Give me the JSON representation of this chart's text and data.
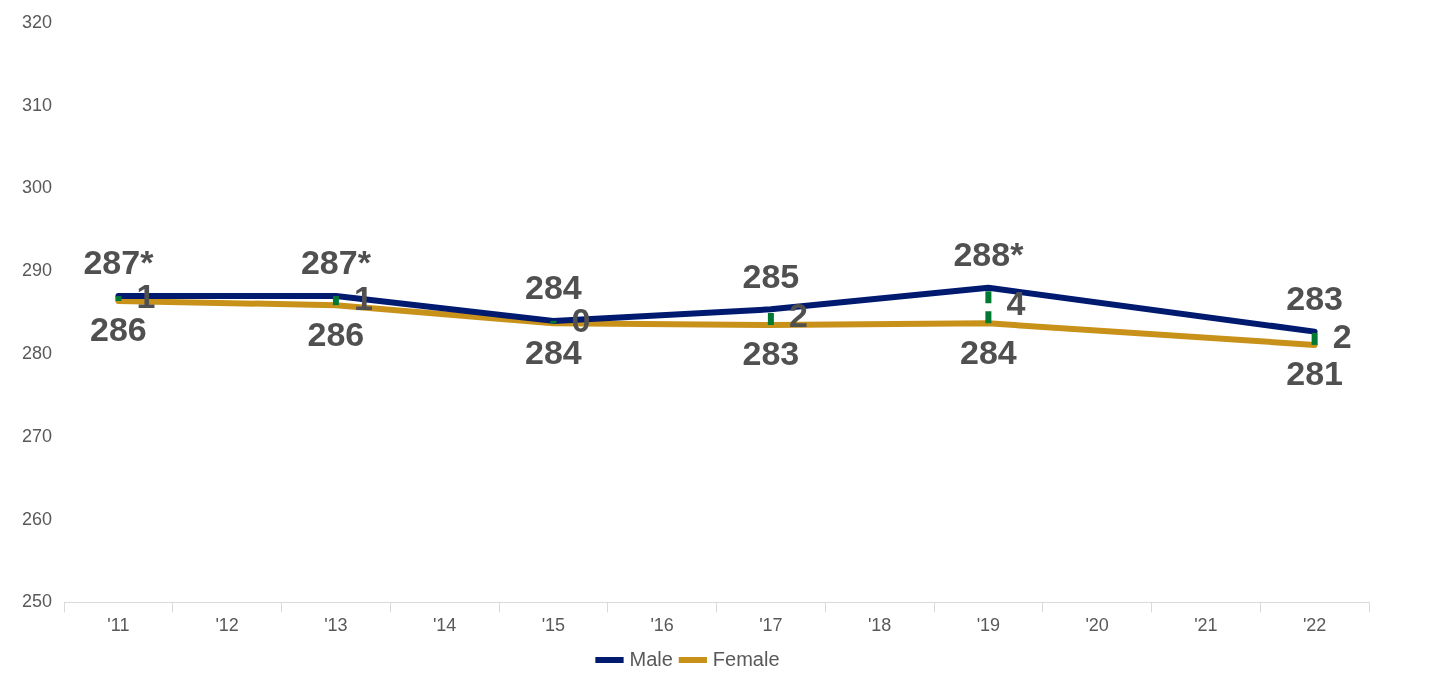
{
  "chart_data": {
    "type": "line",
    "categories": [
      "'11",
      "'12",
      "'13",
      "'14",
      "'15",
      "'16",
      "'17",
      "'18",
      "'19",
      "'20",
      "'21",
      "'22"
    ],
    "series": [
      {
        "name": "Male",
        "color": "#001a70",
        "values": [
          287.0,
          null,
          287.0,
          null,
          284.0,
          null,
          285.4,
          null,
          288.0,
          null,
          null,
          282.7
        ],
        "value_labels": [
          "287*",
          null,
          "287*",
          null,
          "284",
          null,
          "285",
          null,
          "288*",
          null,
          null,
          "283"
        ],
        "errors": [
          [
            286.4,
            287.0
          ],
          null,
          [
            285.9,
            287.0
          ],
          null,
          [
            283.7,
            284.0
          ],
          null,
          [
            283.5,
            285.4
          ],
          null,
          [
            283.7,
            288.0
          ],
          null,
          null,
          [
            281.1,
            282.7
          ]
        ]
      },
      {
        "name": "Female",
        "color": "#c8921a",
        "values": [
          286.4,
          null,
          285.9,
          null,
          283.7,
          null,
          283.5,
          null,
          283.7,
          null,
          null,
          281.1
        ],
        "value_labels": [
          "286",
          null,
          "286",
          null,
          "284",
          null,
          "283",
          null,
          "284",
          null,
          null,
          "281"
        ]
      }
    ],
    "ylim": [
      250,
      320
    ],
    "yticks": [
      250,
      260,
      270,
      280,
      290,
      300,
      310,
      320
    ],
    "annotations": [
      {
        "text": "1",
        "x": "'11",
        "y": 286.7
      },
      {
        "text": "1",
        "x": "'13",
        "y": 286.4
      },
      {
        "text": "0",
        "x": "'15",
        "y": 283.8
      },
      {
        "text": "2",
        "x": "'17",
        "y": 284.4
      },
      {
        "text": "4",
        "x": "'19",
        "y": 285.8
      },
      {
        "text": "2",
        "x": "'22",
        "y": 281.9
      }
    ],
    "legend": "bottom",
    "grid": false,
    "marker": "none",
    "line_style": "solid"
  }
}
